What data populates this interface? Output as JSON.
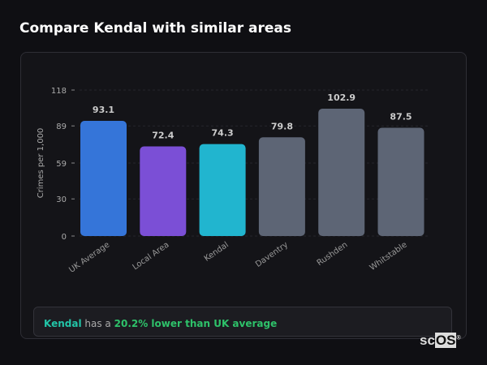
{
  "header": {
    "title": "Compare Kendal with similar areas"
  },
  "chart_data": {
    "type": "bar",
    "categories": [
      "UK Average",
      "Local Area",
      "Kendal",
      "Daventry",
      "Rushden",
      "Whitstable"
    ],
    "values": [
      93.1,
      72.4,
      74.3,
      79.8,
      102.9,
      87.5
    ],
    "value_labels": [
      "93.1",
      "72.4",
      "74.3",
      "79.8",
      "102.9",
      "87.5"
    ],
    "colors": [
      "#3575d9",
      "#7b4fd6",
      "#21b5cf",
      "#5d6575",
      "#5d6575",
      "#5d6575"
    ],
    "xlabel": "",
    "ylabel": "Crimes per 1,000",
    "ylim": [
      0,
      118
    ],
    "yticks": [
      "0",
      "30",
      "59",
      "89",
      "118"
    ],
    "ytick_values": [
      0,
      30,
      59,
      89,
      118
    ],
    "grid": true
  },
  "insight": {
    "area": "Kendal",
    "middle": "has a",
    "comparison": "20.2% lower than UK average"
  },
  "logo": {
    "text_a": "sc",
    "text_b": "OS",
    "mark": "®"
  }
}
